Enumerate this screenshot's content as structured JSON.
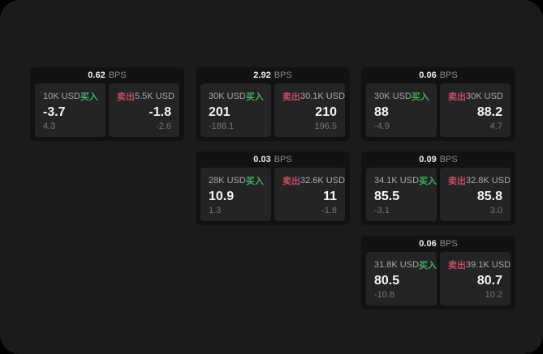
{
  "labels": {
    "bps_suffix": "BPS",
    "buy": "买入",
    "sell": "卖出"
  },
  "colors": {
    "window_bg": "#1b1b1b",
    "card_bg": "#121212",
    "panel_bg": "#242424",
    "buy_green": "#3fae64",
    "sell_red": "#c74a64"
  },
  "cards": [
    {
      "bps": "0.62",
      "buy": {
        "amount": "10K USD",
        "value": "-3.7",
        "delta": "4.3"
      },
      "sell": {
        "amount": "5.5K USD",
        "value": "-1.8",
        "delta": "-2.6"
      }
    },
    {
      "bps": "2.92",
      "buy": {
        "amount": "30K USD",
        "value": "201",
        "delta": "-188.1"
      },
      "sell": {
        "amount": "30.1K USD",
        "value": "210",
        "delta": "196.5"
      }
    },
    {
      "bps": "0.03",
      "buy": {
        "amount": "28K USD",
        "value": "10.9",
        "delta": "1.3"
      },
      "sell": {
        "amount": "32.6K USD",
        "value": "11",
        "delta": "-1.8"
      }
    },
    {
      "bps": "0.06",
      "buy": {
        "amount": "30K USD",
        "value": "88",
        "delta": "-4.9"
      },
      "sell": {
        "amount": "30K USD",
        "value": "88.2",
        "delta": "4.7"
      }
    },
    {
      "bps": "0.09",
      "buy": {
        "amount": "34.1K USD",
        "value": "85.5",
        "delta": "-3.1"
      },
      "sell": {
        "amount": "32.8K USD",
        "value": "85.8",
        "delta": "3.0"
      }
    },
    {
      "bps": "0.06",
      "buy": {
        "amount": "31.8K USD",
        "value": "80.5",
        "delta": "-10.8"
      },
      "sell": {
        "amount": "39.1K USD",
        "value": "80.7",
        "delta": "10.2"
      }
    }
  ]
}
